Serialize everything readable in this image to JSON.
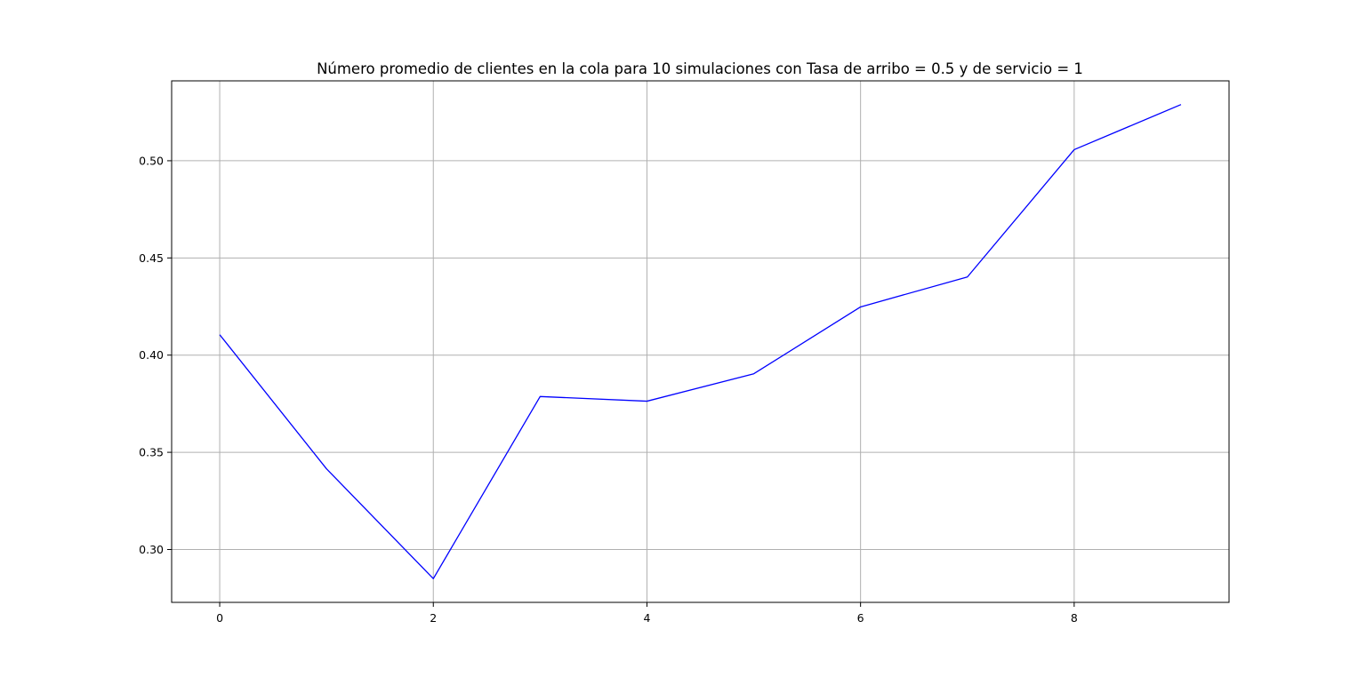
{
  "chart_data": {
    "type": "line",
    "title": "Número promedio de clientes en la cola para 10 simulaciones con Tasa de arribo = 0.5 y de servicio = 1",
    "xlabel": "",
    "ylabel": "",
    "x": [
      0,
      1,
      2,
      3,
      4,
      5,
      6,
      7,
      8,
      9
    ],
    "series": [
      {
        "values": [
          0.4105,
          0.3415,
          0.285,
          0.3787,
          0.3763,
          0.3904,
          0.4248,
          0.4402,
          0.5057,
          0.5289
        ],
        "color": "#0000ff"
      }
    ],
    "xlim": [
      -0.45,
      9.45
    ],
    "ylim": [
      0.2728,
      0.5411
    ],
    "xticks": [
      0,
      2,
      4,
      6,
      8
    ],
    "xtick_labels": [
      "0",
      "2",
      "4",
      "6",
      "8"
    ],
    "yticks": [
      0.3,
      0.35,
      0.4,
      0.45,
      0.5
    ],
    "ytick_labels": [
      "0.30",
      "0.35",
      "0.40",
      "0.45",
      "0.50"
    ],
    "grid": true,
    "legend": "none"
  }
}
